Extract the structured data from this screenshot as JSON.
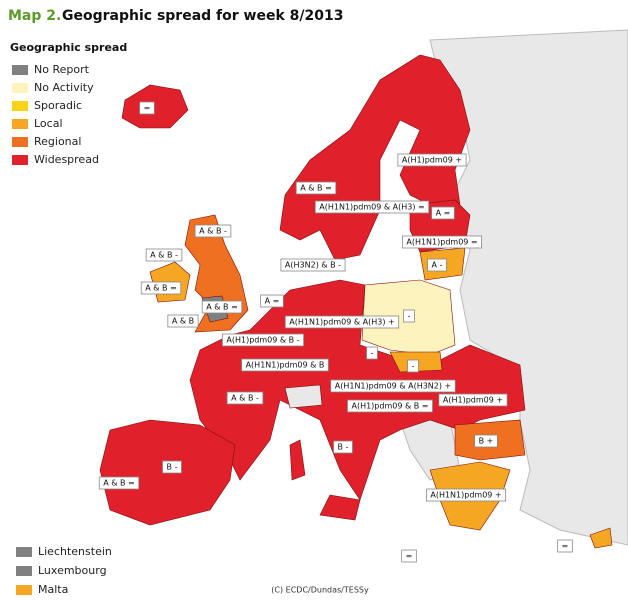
{
  "header": {
    "prefix": "Map 2.",
    "title": "Geographic spread for week 8/2013"
  },
  "legend": {
    "title": "Geographic spread",
    "items": [
      {
        "label": "No Report",
        "color": "#808080"
      },
      {
        "label": "No Activity",
        "color": "#fdf3bf"
      },
      {
        "label": "Sporadic",
        "color": "#f7d417"
      },
      {
        "label": "Local",
        "color": "#f5a623"
      },
      {
        "label": "Regional",
        "color": "#ef7020"
      },
      {
        "label": "Widespread",
        "color": "#e0202a"
      }
    ]
  },
  "small_states": [
    {
      "label": "Liechtenstein",
      "color": "#808080"
    },
    {
      "label": "Luxembourg",
      "color": "#808080"
    },
    {
      "label": "Malta",
      "color": "#f5a623"
    }
  ],
  "labels": [
    "=",
    "A(H1)pdm09 +",
    "A & B =",
    "A(H1N1)pdm09 & A(H3) =",
    "A =",
    "A & B -",
    "A & B -",
    "A(H1N1)pdm09 =",
    "A(H3N2) & B -",
    "A -",
    "A & B =",
    "A =",
    "A & B =",
    "-",
    "A & B",
    "A(H1N1)pdm09 & A(H3) +",
    "A(H1)pdm09 & B -",
    "-",
    "A(H1N1)pdm09 & B",
    "-",
    "A(H1N1)pdm09 & A(H3N2) +",
    "A & B -",
    "A(H1)pdm09 +",
    "A(H1)pdm09 & B =",
    "B -",
    "B +",
    "B -",
    "A & B =",
    "A(H1N1)pdm09 +",
    "=",
    "="
  ],
  "credit": "(C) ECDC/Dundas/TESSy"
}
